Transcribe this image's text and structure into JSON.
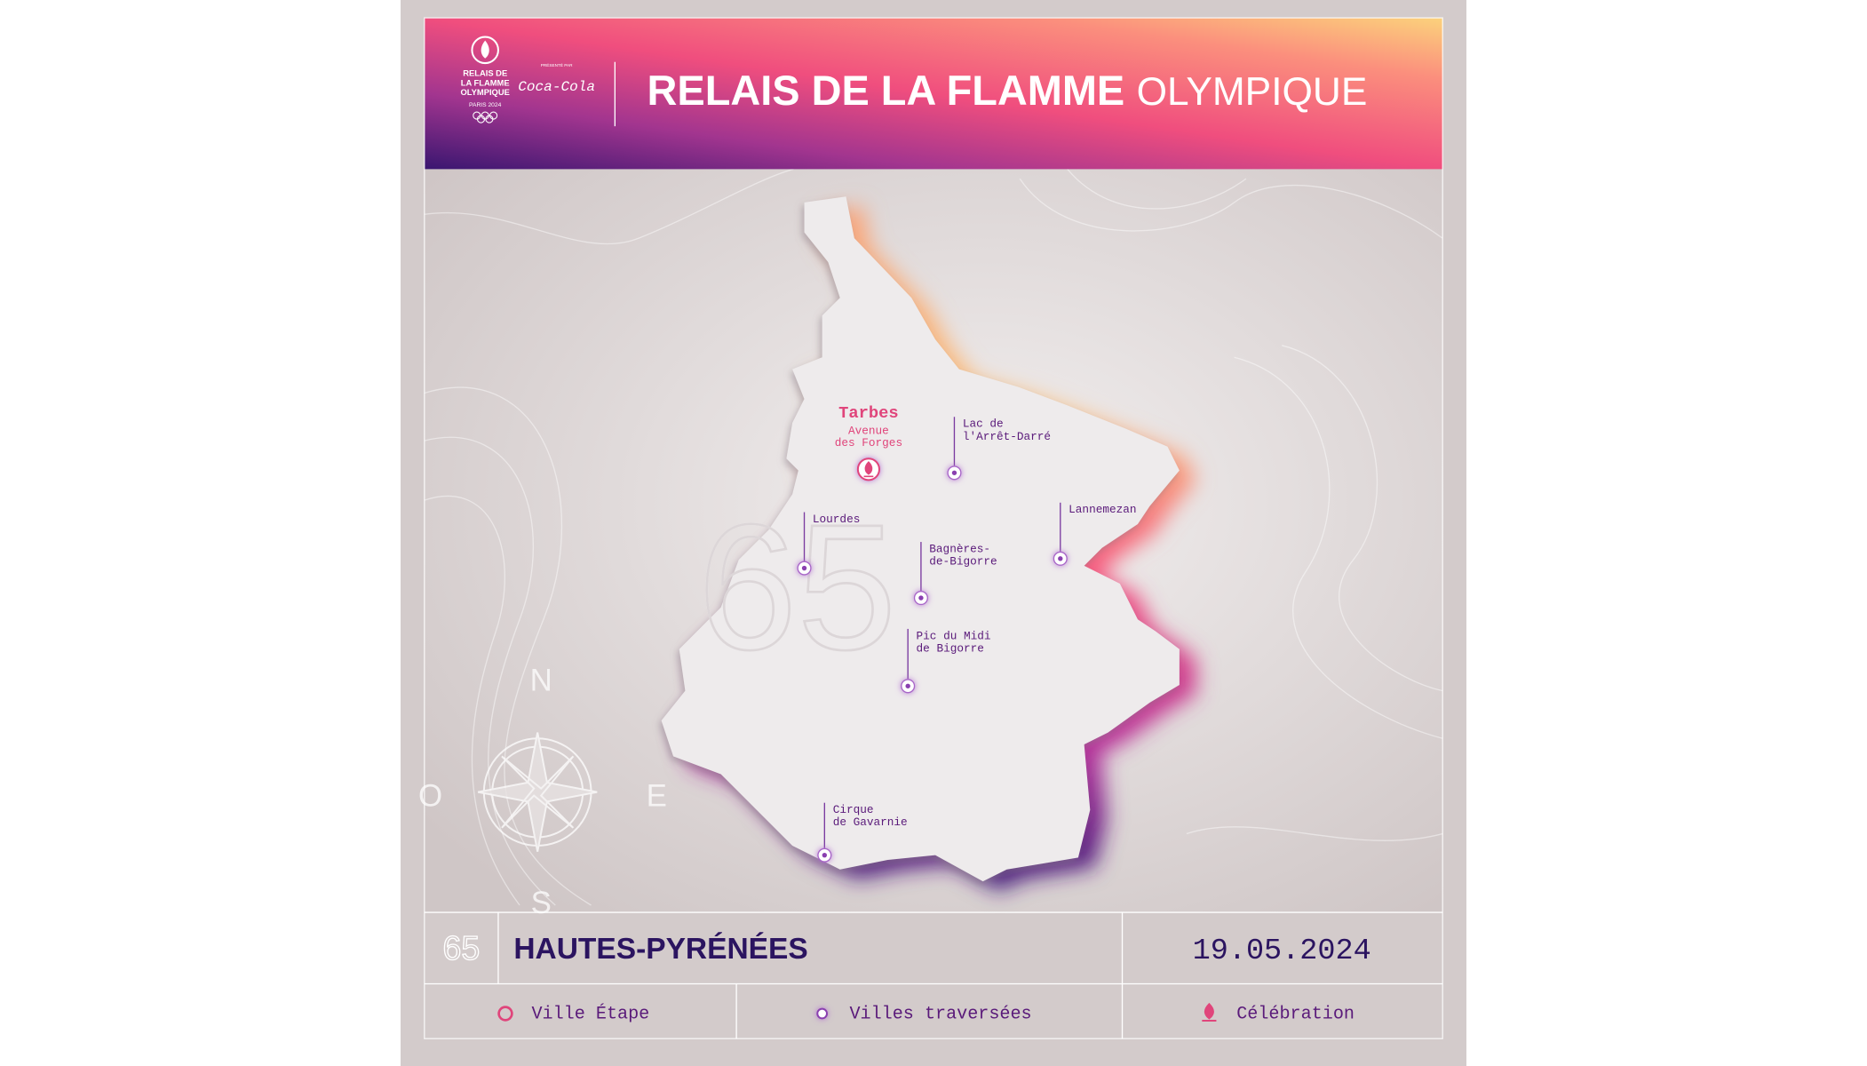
{
  "header": {
    "logo": {
      "lines": [
        "RELAIS DE",
        "LA FLAMME",
        "OLYMPIQUE"
      ],
      "edition": "PARIS 2024"
    },
    "sponsor": {
      "presented_by": "PRÉSENTÉ PAR",
      "brand": "Coca-Cola"
    },
    "title_bold": "RELAIS DE LA FLAMME",
    "title_light": "OLYMPIQUE"
  },
  "map": {
    "stage": {
      "city": "Tarbes",
      "venue": [
        "Avenue",
        "des Forges"
      ]
    },
    "places": [
      {
        "label": [
          "Lac de",
          "l'Arrêt-Darré"
        ]
      },
      {
        "label": [
          "Lourdes"
        ]
      },
      {
        "label": [
          "Lannemezan"
        ]
      },
      {
        "label": [
          "Bagnères-",
          "de-Bigorre"
        ]
      },
      {
        "label": [
          "Pic du Midi",
          "de Bigorre"
        ]
      },
      {
        "label": [
          "Cirque",
          "de Gavarnie"
        ]
      }
    ],
    "compass": [
      "N",
      "E",
      "S",
      "O"
    ]
  },
  "footer": {
    "department_number": "65",
    "department_name": "HAUTES-PYRÉNÉES",
    "date": "19.05.2024"
  },
  "legend": [
    "Ville Étape",
    "Villes traversées",
    "Célébration"
  ]
}
